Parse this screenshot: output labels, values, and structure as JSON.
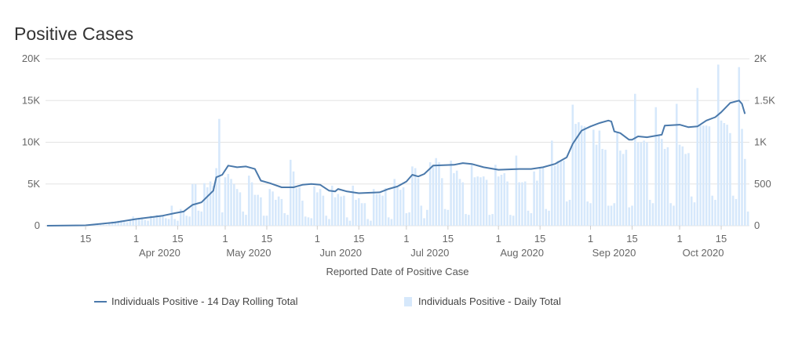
{
  "title": "Positive Cases",
  "chart_data": {
    "type": "bar+line",
    "title": "Positive Cases",
    "xlabel": "Reported Date of Positive Case",
    "start_date": "2020-03-02",
    "x_ticks": [
      {
        "date": "2020-03-15",
        "label": "15",
        "month": ""
      },
      {
        "date": "2020-04-01",
        "label": "1",
        "month": "Apr 2020"
      },
      {
        "date": "2020-04-15",
        "label": "15",
        "month": ""
      },
      {
        "date": "2020-05-01",
        "label": "1",
        "month": "May 2020"
      },
      {
        "date": "2020-05-15",
        "label": "15",
        "month": ""
      },
      {
        "date": "2020-06-01",
        "label": "1",
        "month": "Jun 2020"
      },
      {
        "date": "2020-06-15",
        "label": "15",
        "month": ""
      },
      {
        "date": "2020-07-01",
        "label": "1",
        "month": "Jul 2020"
      },
      {
        "date": "2020-07-15",
        "label": "15",
        "month": ""
      },
      {
        "date": "2020-08-01",
        "label": "1",
        "month": "Aug 2020"
      },
      {
        "date": "2020-08-15",
        "label": "15",
        "month": ""
      },
      {
        "date": "2020-09-01",
        "label": "1",
        "month": "Sep 2020"
      },
      {
        "date": "2020-09-15",
        "label": "15",
        "month": ""
      },
      {
        "date": "2020-10-01",
        "label": "1",
        "month": "Oct 2020"
      },
      {
        "date": "2020-10-15",
        "label": "15",
        "month": ""
      }
    ],
    "left_axis": {
      "ylim": [
        0,
        20000
      ],
      "ticks": [
        {
          "v": 0,
          "label": "0"
        },
        {
          "v": 5000,
          "label": "5K"
        },
        {
          "v": 10000,
          "label": "10K"
        },
        {
          "v": 15000,
          "label": "15K"
        },
        {
          "v": 20000,
          "label": "20K"
        }
      ]
    },
    "right_axis": {
      "ylim": [
        0,
        2000
      ],
      "ticks": [
        {
          "v": 0,
          "label": "0"
        },
        {
          "v": 500,
          "label": "500"
        },
        {
          "v": 1000,
          "label": "1K"
        },
        {
          "v": 1500,
          "label": "1.5K"
        },
        {
          "v": 2000,
          "label": "2K"
        }
      ]
    },
    "series": [
      {
        "name": "Individuals Positive - 14 Day Rolling Total",
        "type": "line",
        "axis": "left",
        "color": "#4a79ab",
        "points": [
          [
            "2020-03-02",
            0
          ],
          [
            "2020-03-15",
            50
          ],
          [
            "2020-03-25",
            400
          ],
          [
            "2020-04-01",
            800
          ],
          [
            "2020-04-10",
            1200
          ],
          [
            "2020-04-14",
            1500
          ],
          [
            "2020-04-17",
            1700
          ],
          [
            "2020-04-20",
            2500
          ],
          [
            "2020-04-23",
            2800
          ],
          [
            "2020-04-27",
            4200
          ],
          [
            "2020-04-28",
            5800
          ],
          [
            "2020-04-30",
            6100
          ],
          [
            "2020-05-02",
            7200
          ],
          [
            "2020-05-05",
            7000
          ],
          [
            "2020-05-08",
            7100
          ],
          [
            "2020-05-11",
            6800
          ],
          [
            "2020-05-13",
            5400
          ],
          [
            "2020-05-16",
            5100
          ],
          [
            "2020-05-20",
            4600
          ],
          [
            "2020-05-24",
            4600
          ],
          [
            "2020-05-27",
            4900
          ],
          [
            "2020-05-30",
            5000
          ],
          [
            "2020-06-02",
            4900
          ],
          [
            "2020-06-05",
            4200
          ],
          [
            "2020-06-07",
            4100
          ],
          [
            "2020-06-08",
            4400
          ],
          [
            "2020-06-11",
            4100
          ],
          [
            "2020-06-15",
            3900
          ],
          [
            "2020-06-22",
            4000
          ],
          [
            "2020-06-25",
            4400
          ],
          [
            "2020-06-28",
            4700
          ],
          [
            "2020-07-01",
            5300
          ],
          [
            "2020-07-03",
            6100
          ],
          [
            "2020-07-05",
            5900
          ],
          [
            "2020-07-07",
            6200
          ],
          [
            "2020-07-10",
            7200
          ],
          [
            "2020-07-17",
            7300
          ],
          [
            "2020-07-20",
            7500
          ],
          [
            "2020-07-23",
            7400
          ],
          [
            "2020-07-27",
            7000
          ],
          [
            "2020-08-01",
            6700
          ],
          [
            "2020-08-08",
            6800
          ],
          [
            "2020-08-12",
            6800
          ],
          [
            "2020-08-16",
            7000
          ],
          [
            "2020-08-20",
            7400
          ],
          [
            "2020-08-24",
            8200
          ],
          [
            "2020-08-26",
            9800
          ],
          [
            "2020-08-29",
            11400
          ],
          [
            "2020-09-01",
            11900
          ],
          [
            "2020-09-04",
            12300
          ],
          [
            "2020-09-07",
            12600
          ],
          [
            "2020-09-08",
            12500
          ],
          [
            "2020-09-09",
            11300
          ],
          [
            "2020-09-11",
            11100
          ],
          [
            "2020-09-14",
            10300
          ],
          [
            "2020-09-15",
            10300
          ],
          [
            "2020-09-17",
            10700
          ],
          [
            "2020-09-20",
            10600
          ],
          [
            "2020-09-25",
            10900
          ],
          [
            "2020-09-26",
            12000
          ],
          [
            "2020-10-01",
            12100
          ],
          [
            "2020-10-04",
            11800
          ],
          [
            "2020-10-07",
            11900
          ],
          [
            "2020-10-10",
            12600
          ],
          [
            "2020-10-13",
            13000
          ],
          [
            "2020-10-15",
            13600
          ],
          [
            "2020-10-18",
            14700
          ],
          [
            "2020-10-21",
            15000
          ],
          [
            "2020-10-22",
            14600
          ],
          [
            "2020-10-23",
            13400
          ]
        ]
      },
      {
        "name": "Individuals Positive - Daily Total",
        "type": "bar",
        "axis": "right",
        "color": "#d6e8fb",
        "values": [
          0,
          0,
          0,
          1,
          1,
          0,
          0,
          1,
          2,
          3,
          4,
          5,
          2,
          2,
          8,
          10,
          15,
          20,
          25,
          12,
          10,
          40,
          50,
          55,
          60,
          65,
          45,
          40,
          80,
          110,
          90,
          95,
          100,
          70,
          60,
          120,
          110,
          130,
          125,
          115,
          90,
          80,
          240,
          80,
          60,
          200,
          170,
          120,
          110,
          500,
          500,
          180,
          170,
          510,
          460,
          530,
          480,
          690,
          1280,
          160,
          580,
          620,
          560,
          500,
          440,
          400,
          170,
          130,
          600,
          520,
          370,
          370,
          340,
          120,
          120,
          440,
          410,
          310,
          350,
          320,
          150,
          130,
          790,
          650,
          450,
          460,
          300,
          110,
          100,
          90,
          470,
          400,
          440,
          360,
          120,
          80,
          480,
          340,
          380,
          350,
          360,
          100,
          60,
          480,
          310,
          330,
          270,
          270,
          80,
          60,
          440,
          380,
          380,
          360,
          450,
          100,
          80,
          560,
          460,
          430,
          460,
          150,
          160,
          710,
          690,
          570,
          240,
          90,
          190,
          760,
          730,
          810,
          760,
          570,
          200,
          190,
          780,
          630,
          660,
          560,
          520,
          140,
          130,
          740,
          580,
          590,
          580,
          590,
          550,
          130,
          140,
          730,
          590,
          610,
          630,
          530,
          130,
          120,
          840,
          520,
          520,
          530,
          180,
          150,
          650,
          540,
          700,
          700,
          200,
          180,
          1020,
          720,
          780,
          780,
          780,
          290,
          310,
          1450,
          1220,
          1240,
          1200,
          1190,
          290,
          270,
          1150,
          970,
          1140,
          920,
          910,
          240,
          240,
          270,
          1120,
          900,
          860,
          910,
          220,
          240,
          1580,
          1000,
          1000,
          1020,
          1000,
          310,
          270,
          1420,
          1090,
          1040,
          920,
          940,
          270,
          240,
          1460,
          970,
          950,
          860,
          870,
          350,
          280,
          1650,
          1200,
          1200,
          1200,
          1190,
          360,
          310,
          1930,
          1260,
          1230,
          1210,
          1110,
          360,
          320,
          1900,
          1160,
          800,
          170
        ]
      }
    ],
    "grid": true,
    "legend_placement": "bottom"
  },
  "legend": {
    "line_label": "Individuals Positive - 14 Day Rolling Total",
    "bar_label": "Individuals Positive - Daily Total"
  }
}
